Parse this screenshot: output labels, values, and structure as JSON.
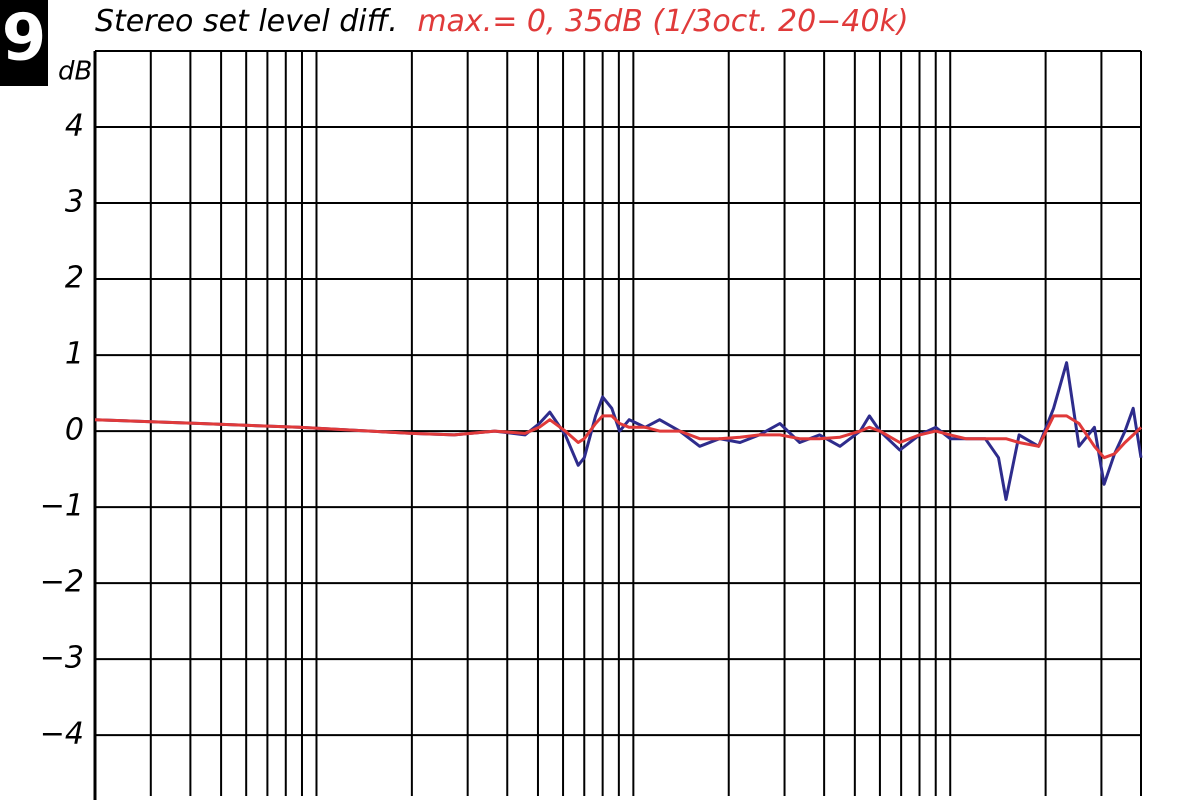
{
  "figure_number": "9",
  "chart_data": {
    "type": "line",
    "title": "Stereo set level diff.",
    "annotation": "max.= 0, 35dB (1/3oct. 20−40k)",
    "annotation_color": "#e03a3a",
    "y_label": "dB",
    "log_x": true,
    "grid": true,
    "xlim": [
      20,
      40000
    ],
    "xticks": [
      20,
      30,
      40,
      50,
      60,
      70,
      80,
      90,
      100,
      200,
      300,
      400,
      500,
      600,
      700,
      800,
      900,
      1000,
      2000,
      3000,
      4000,
      5000,
      6000,
      7000,
      8000,
      9000,
      10000,
      20000,
      30000,
      40000
    ],
    "ylim": [
      -4.8,
      5
    ],
    "yticks": [
      {
        "value": -4,
        "label": "−4"
      },
      {
        "value": -3,
        "label": "−3"
      },
      {
        "value": -2,
        "label": "−2"
      },
      {
        "value": -1,
        "label": "−1"
      },
      0,
      1,
      2,
      3,
      4
    ],
    "x": [
      20,
      43,
      88,
      200,
      272,
      365,
      455,
      505,
      545,
      610,
      670,
      700,
      760,
      800,
      855,
      905,
      970,
      1090,
      1210,
      1400,
      1620,
      1870,
      2170,
      2500,
      2900,
      3350,
      3870,
      4490,
      5200,
      5560,
      6000,
      6930,
      8000,
      9000,
      10000,
      11200,
      12900,
      14200,
      15000,
      16500,
      19000,
      21200,
      23300,
      25500,
      28500,
      30600,
      33000,
      35600,
      37800,
      40000
    ],
    "series": [
      {
        "color": "#2e2c8c",
        "values": [
          0.15,
          0.1,
          0.05,
          -0.03,
          -0.05,
          0.0,
          -0.05,
          0.1,
          0.25,
          -0.05,
          -0.45,
          -0.35,
          0.2,
          0.45,
          0.3,
          0.0,
          0.15,
          0.05,
          0.15,
          0.0,
          -0.2,
          -0.1,
          -0.15,
          -0.05,
          0.1,
          -0.15,
          -0.05,
          -0.2,
          0.0,
          0.2,
          0.0,
          -0.25,
          -0.05,
          0.05,
          -0.1,
          -0.1,
          -0.1,
          -0.35,
          -0.9,
          -0.05,
          -0.2,
          0.3,
          0.9,
          -0.2,
          0.05,
          -0.7,
          -0.3,
          0.0,
          0.3,
          -0.35
        ]
      },
      {
        "color": "#e03a3a",
        "values": [
          0.15,
          0.1,
          0.05,
          -0.03,
          -0.05,
          0.0,
          -0.03,
          0.05,
          0.15,
          0.0,
          -0.15,
          -0.1,
          0.1,
          0.2,
          0.2,
          0.1,
          0.05,
          0.05,
          0.0,
          0.0,
          -0.1,
          -0.1,
          -0.08,
          -0.05,
          -0.05,
          -0.1,
          -0.1,
          -0.08,
          0.0,
          0.05,
          0.0,
          -0.15,
          -0.05,
          0.0,
          -0.05,
          -0.1,
          -0.1,
          -0.1,
          -0.1,
          -0.15,
          -0.2,
          0.2,
          0.2,
          0.1,
          -0.2,
          -0.35,
          -0.3,
          -0.15,
          -0.05,
          0.05
        ]
      }
    ]
  }
}
